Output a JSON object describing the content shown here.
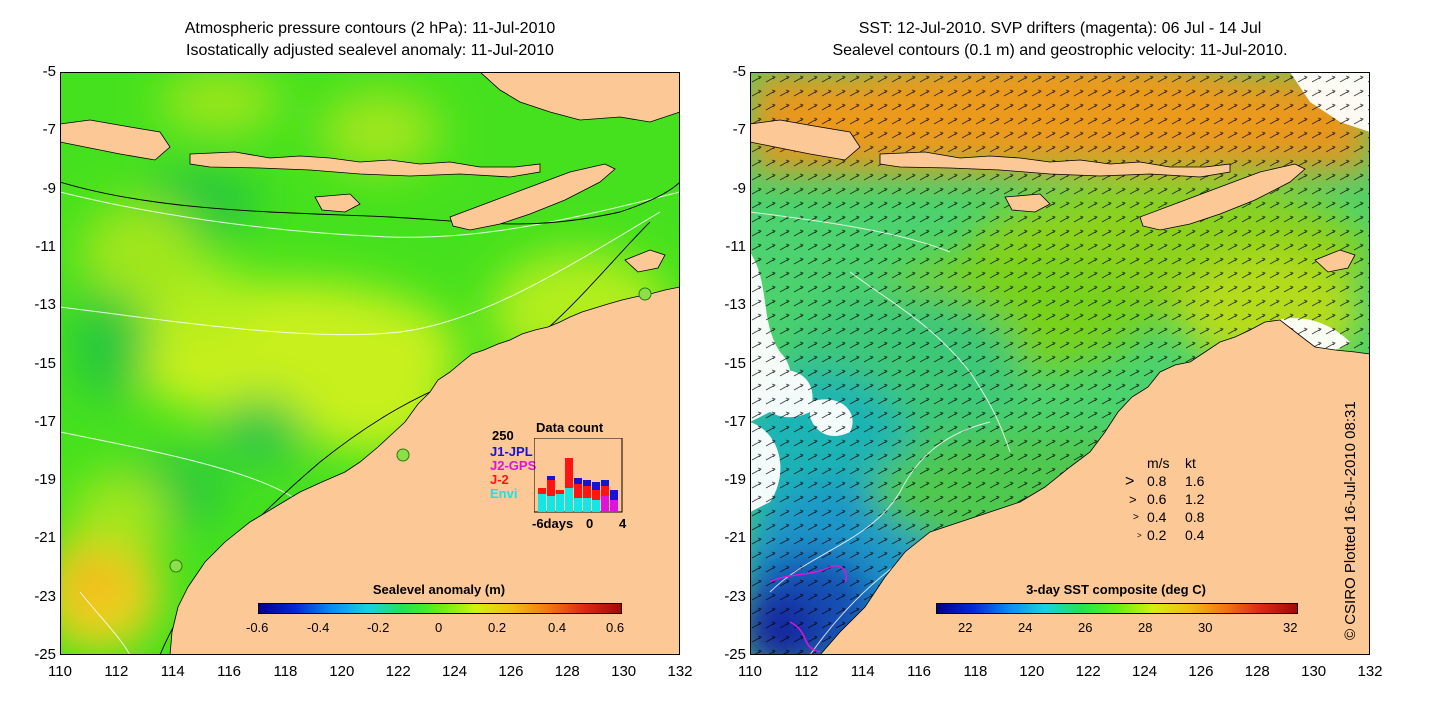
{
  "left_panel": {
    "title_line1": "Atmospheric pressure contours (2 hPa): 11-Jul-2010",
    "title_line2": "Isostatically adjusted sealevel anomaly: 11-Jul-2010",
    "colorbar": {
      "title": "Sealevel anomaly (m)",
      "labels": [
        "-0.6",
        "-0.4",
        "-0.2",
        "0",
        "0.2",
        "0.4",
        "0.6"
      ],
      "range": [
        -0.6,
        0.6
      ]
    },
    "data_count": {
      "title": "Data count",
      "max_label": "250",
      "series": [
        {
          "name": "J1-JPL",
          "color": "#1414d2"
        },
        {
          "name": "J2-GPS",
          "color": "#dc14dc"
        },
        {
          "name": "J-2",
          "color": "#ff1414"
        },
        {
          "name": "Envi",
          "color": "#14e6e6"
        }
      ],
      "x_labels": [
        "-6days",
        "0",
        "4"
      ]
    }
  },
  "right_panel": {
    "title_line1": "SST: 12-Jul-2010. SVP drifters (magenta): 06 Jul - 14 Jul",
    "title_line2": "Sealevel contours (0.1 m) and geostrophic velocity: 11-Jul-2010.",
    "colorbar": {
      "title": "3-day SST composite (deg C)",
      "labels": [
        "22",
        "24",
        "26",
        "28",
        "30",
        "32"
      ],
      "range": [
        21,
        33
      ]
    },
    "speed_legend": {
      "header_ms": "m/s",
      "header_kt": "kt",
      "rows": [
        {
          "ms": "0.8",
          "kt": "1.6"
        },
        {
          "ms": "0.6",
          "kt": "1.2"
        },
        {
          "ms": "0.4",
          "kt": "0.8"
        },
        {
          "ms": "0.2",
          "kt": "0.4"
        }
      ]
    }
  },
  "axes": {
    "y_ticks": [
      "-5",
      "-7",
      "-9",
      "-11",
      "-13",
      "-15",
      "-17",
      "-19",
      "-21",
      "-23",
      "-25"
    ],
    "x_ticks": [
      "110",
      "112",
      "114",
      "116",
      "118",
      "120",
      "122",
      "124",
      "126",
      "128",
      "130",
      "132"
    ],
    "lon_range": [
      110,
      132
    ],
    "lat_range": [
      -25,
      -5
    ]
  },
  "credit": "© CSIRO Plotted 16-Jul-2010 08:31",
  "colors": {
    "land": "#fcc896",
    "anomaly_green": "#32dc14",
    "anomaly_yellow": "#c8f01e",
    "sst_deep_blue": "#1428b4",
    "sst_warm": "#e68c14"
  }
}
